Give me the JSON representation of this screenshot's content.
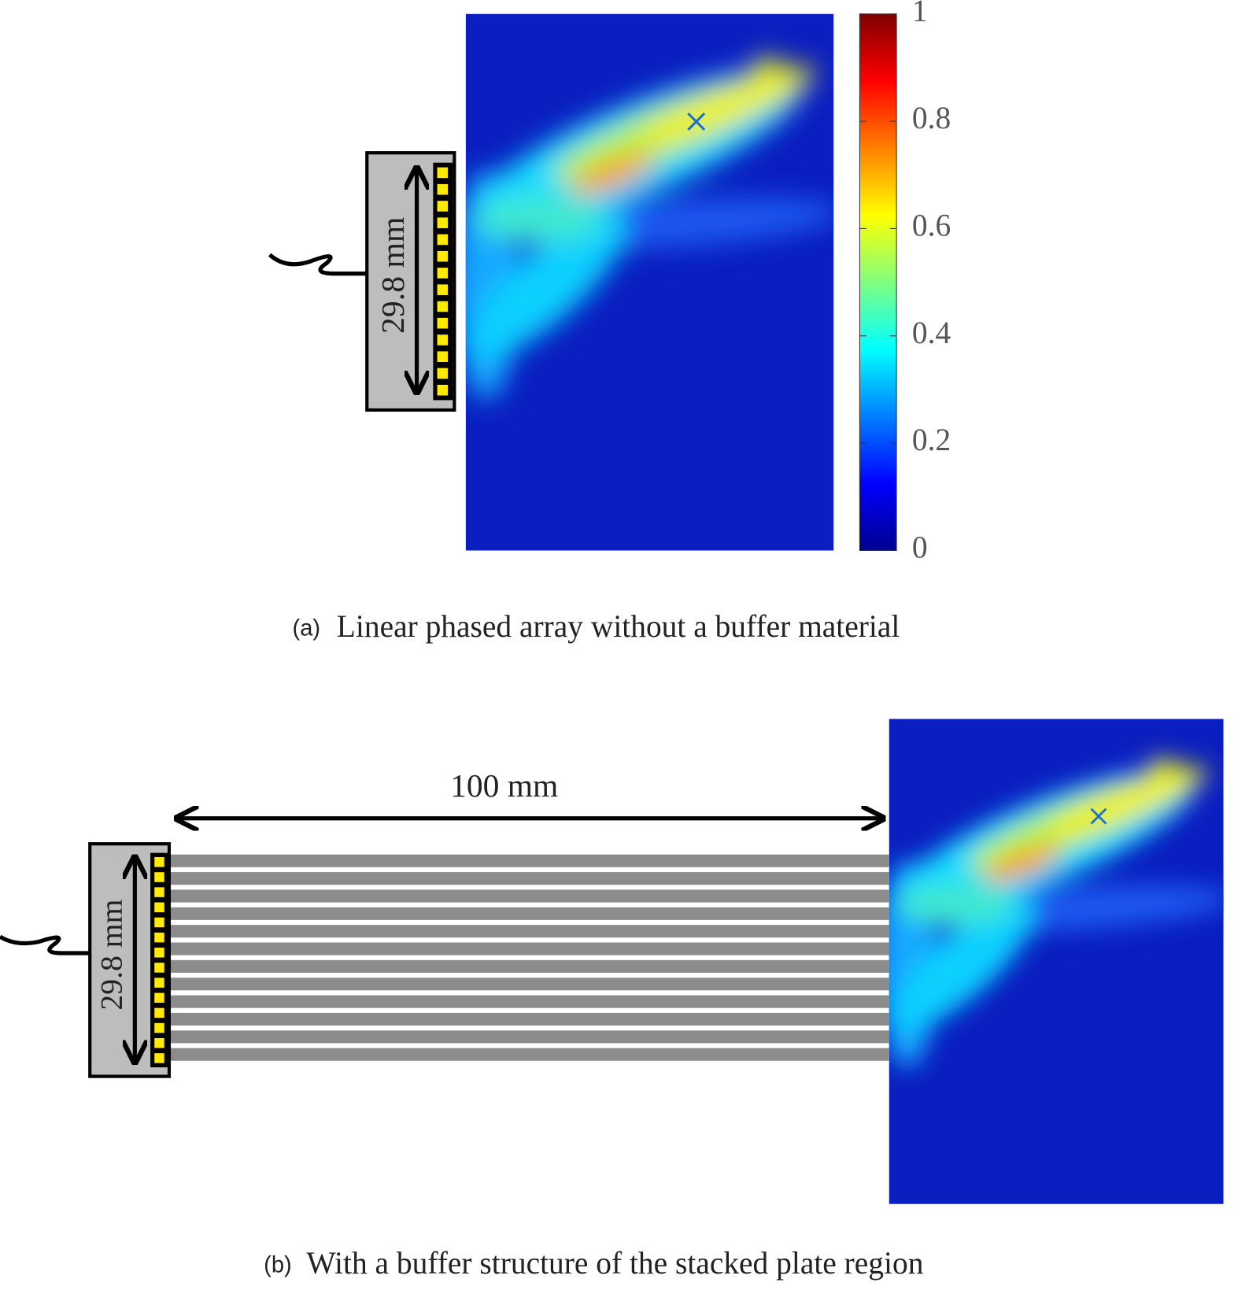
{
  "panel_a": {
    "label": "(a)",
    "caption": "Linear phased array without a buffer material",
    "array_width_label": "29.8 mm",
    "colorbar": {
      "lim": [
        0,
        1
      ],
      "ticks": [
        0,
        0.2,
        0.4,
        0.6,
        0.8,
        1
      ]
    }
  },
  "panel_b": {
    "label": "(b)",
    "caption": "With a buffer structure of the stacked plate region",
    "array_width_label": "29.8 mm",
    "buffer_length_label": "100 mm"
  }
}
